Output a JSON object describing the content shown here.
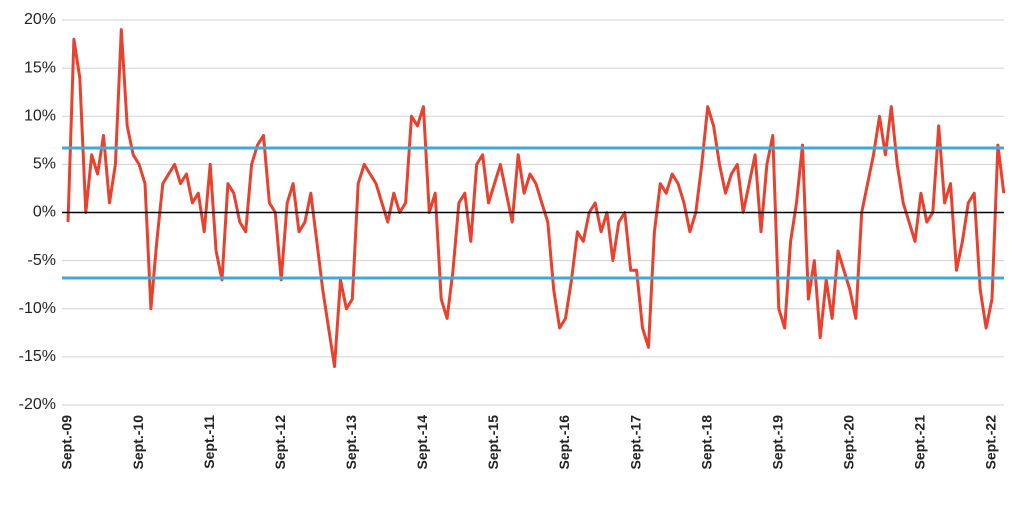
{
  "chart_data": {
    "type": "line",
    "categories": [
      "Sept.-09",
      null,
      null,
      null,
      null,
      null,
      null,
      null,
      null,
      null,
      null,
      null,
      "Sept.-10",
      null,
      null,
      null,
      null,
      null,
      null,
      null,
      null,
      null,
      null,
      null,
      "Sept.-11",
      null,
      null,
      null,
      null,
      null,
      null,
      null,
      null,
      null,
      null,
      null,
      "Sept.-12",
      null,
      null,
      null,
      null,
      null,
      null,
      null,
      null,
      null,
      null,
      null,
      "Sept.-13",
      null,
      null,
      null,
      null,
      null,
      null,
      null,
      null,
      null,
      null,
      null,
      "Sept.-14",
      null,
      null,
      null,
      null,
      null,
      null,
      null,
      null,
      null,
      null,
      null,
      "Sept.-15",
      null,
      null,
      null,
      null,
      null,
      null,
      null,
      null,
      null,
      null,
      null,
      "Sept.-16",
      null,
      null,
      null,
      null,
      null,
      null,
      null,
      null,
      null,
      null,
      null,
      "Sept.-17",
      null,
      null,
      null,
      null,
      null,
      null,
      null,
      null,
      null,
      null,
      null,
      "Sept.-18",
      null,
      null,
      null,
      null,
      null,
      null,
      null,
      null,
      null,
      null,
      null,
      "Sept.-19",
      null,
      null,
      null,
      null,
      null,
      null,
      null,
      null,
      null,
      null,
      null,
      "Sept.-20",
      null,
      null,
      null,
      null,
      null,
      null,
      null,
      null,
      null,
      null,
      null,
      "Sept.-21",
      null,
      null,
      null,
      null,
      null,
      null,
      null,
      null,
      null,
      null,
      null,
      "Sept.-22",
      null,
      null
    ],
    "series": [
      {
        "color": "#e8412e",
        "values": [
          -1,
          18,
          14,
          0,
          6,
          4,
          8,
          1,
          5,
          19,
          9,
          6,
          5,
          3,
          -10,
          -3,
          3,
          4,
          5,
          3,
          4,
          1,
          2,
          -2,
          5,
          -4,
          -7,
          3,
          2,
          -1,
          -2,
          5,
          7,
          8,
          1,
          0,
          -7,
          1,
          3,
          -2,
          -1,
          2,
          -3,
          -8,
          -12,
          -16,
          -7,
          -10,
          -9,
          3,
          5,
          4,
          3,
          1,
          -1,
          2,
          0,
          1,
          10,
          9,
          11,
          0,
          2,
          -9,
          -11,
          -6,
          1,
          2,
          -3,
          5,
          6,
          1,
          3,
          5,
          2,
          -1,
          6,
          2,
          4,
          3,
          1,
          -1,
          -8,
          -12,
          -11,
          -7,
          -2,
          -3,
          0,
          1,
          -2,
          0,
          -5,
          -1,
          0,
          -6,
          -6,
          -12,
          -14,
          -2,
          3,
          2,
          4,
          3,
          1,
          -2,
          0,
          5,
          11,
          9,
          5,
          2,
          4,
          5,
          0,
          3,
          6,
          -2,
          5,
          8,
          -10,
          -12,
          -3,
          1,
          7,
          -9,
          -5,
          -13,
          -7,
          -11,
          -4,
          -6,
          -8,
          -11,
          0,
          3,
          6,
          10,
          6,
          11,
          5,
          1,
          -1,
          -3,
          2,
          -1,
          0,
          9,
          1,
          3,
          -6,
          -3,
          1,
          2,
          -8,
          -12,
          -9,
          7,
          2
        ]
      }
    ],
    "ylim": [
      -20,
      20
    ],
    "yticks": [
      {
        "value": -20,
        "label": "-20%"
      },
      {
        "value": -15,
        "label": "-15%"
      },
      {
        "value": -10,
        "label": "-10%"
      },
      {
        "value": -5,
        "label": "-5%"
      },
      {
        "value": 0,
        "label": "0%"
      },
      {
        "value": 5,
        "label": "5%"
      },
      {
        "value": 10,
        "label": "10%"
      },
      {
        "value": 15,
        "label": "15%"
      },
      {
        "value": 20,
        "label": "20%"
      }
    ],
    "grid": true,
    "hlines": [
      {
        "value": 6.7,
        "color": "#3fa9d8"
      },
      {
        "value": -6.8,
        "color": "#3fa9d8"
      },
      {
        "value": 0,
        "color": "#000000"
      }
    ]
  }
}
